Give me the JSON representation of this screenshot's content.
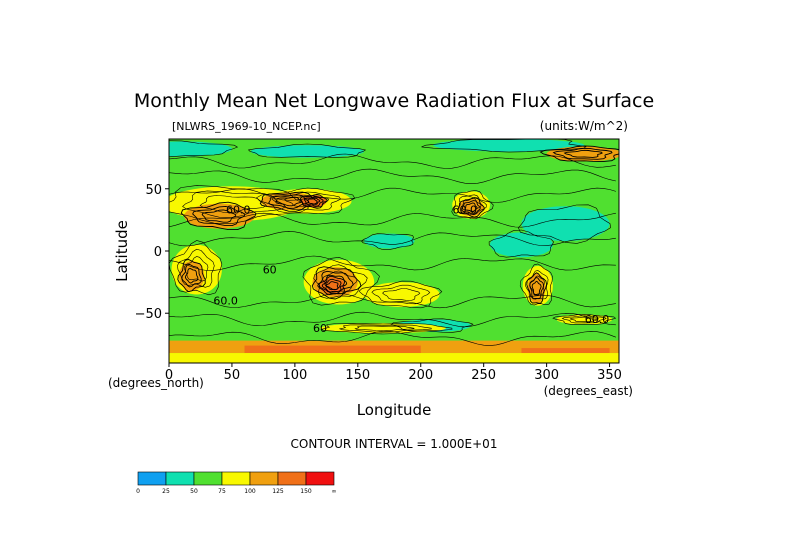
{
  "chart_data": {
    "type": "heatmap",
    "title": "Monthly Mean Net Longwave Radiation Flux at Surface",
    "file_label": "[NLWRS_1969-10_NCEP.nc]",
    "units_label": "(units:W/m^2)",
    "xlabel": "Longitude",
    "ylabel": "Latitude",
    "x_unit_label": "(degrees_east)",
    "y_unit_label": "(degrees_north)",
    "contour_interval_label": "CONTOUR INTERVAL = 1.000E+01",
    "xlim": [
      0,
      357.5
    ],
    "ylim": [
      -90,
      90
    ],
    "x_ticks": [
      0,
      50,
      100,
      150,
      200,
      250,
      300,
      350
    ],
    "y_ticks": [
      -50,
      0,
      50
    ],
    "contour_labels": [
      {
        "text": "60.0",
        "lon": 55,
        "lat": 30
      },
      {
        "text": "60",
        "lon": 80,
        "lat": -18
      },
      {
        "text": "60.0",
        "lon": 45,
        "lat": -43
      },
      {
        "text": "60.0",
        "lon": 235,
        "lat": 30
      },
      {
        "text": "60.0",
        "lon": 340,
        "lat": -58
      },
      {
        "text": "60",
        "lon": 120,
        "lat": -65
      }
    ],
    "colorbar": {
      "ticks": [
        "0",
        "25",
        "50",
        "75",
        "100",
        "125",
        "150",
        "∞"
      ],
      "colors": [
        "#10a0f0",
        "#10e0b0",
        "#50e030",
        "#f8f800",
        "#f0a010",
        "#f07018",
        "#f01010"
      ]
    },
    "features": [
      {
        "kind": "band",
        "level": 2,
        "lon": [
          0,
          357.5
        ],
        "lat": [
          -90,
          90
        ]
      },
      {
        "kind": "blob",
        "level": 1,
        "lon": 10,
        "lat": 82,
        "rx": 40,
        "ry": 6
      },
      {
        "kind": "blob",
        "level": 1,
        "lon": 110,
        "lat": 80,
        "rx": 45,
        "ry": 5
      },
      {
        "kind": "blob",
        "level": 1,
        "lon": 270,
        "lat": 85,
        "rx": 60,
        "ry": 5
      },
      {
        "kind": "blob",
        "level": 1,
        "lon": 315,
        "lat": 22,
        "rx": 35,
        "ry": 14
      },
      {
        "kind": "blob",
        "level": 1,
        "lon": 280,
        "lat": 5,
        "rx": 25,
        "ry": 10
      },
      {
        "kind": "blob",
        "level": 1,
        "lon": 175,
        "lat": 8,
        "rx": 20,
        "ry": 6
      },
      {
        "kind": "blob",
        "level": 1,
        "lon": 210,
        "lat": -60,
        "rx": 30,
        "ry": 5
      },
      {
        "kind": "blob",
        "level": 3,
        "lon": 50,
        "lat": 38,
        "rx": 55,
        "ry": 14
      },
      {
        "kind": "blob",
        "level": 3,
        "lon": 110,
        "lat": 40,
        "rx": 35,
        "ry": 10
      },
      {
        "kind": "blob",
        "level": 3,
        "lon": 240,
        "lat": 37,
        "rx": 15,
        "ry": 11
      },
      {
        "kind": "blob",
        "level": 3,
        "lon": 135,
        "lat": -25,
        "rx": 28,
        "ry": 18
      },
      {
        "kind": "blob",
        "level": 3,
        "lon": 22,
        "lat": -15,
        "rx": 20,
        "ry": 20
      },
      {
        "kind": "blob",
        "level": 3,
        "lon": 185,
        "lat": -35,
        "rx": 30,
        "ry": 10
      },
      {
        "kind": "blob",
        "level": 3,
        "lon": 293,
        "lat": -28,
        "rx": 12,
        "ry": 16
      },
      {
        "kind": "blob",
        "level": 3,
        "lon": 170,
        "lat": -62,
        "rx": 50,
        "ry": 4
      },
      {
        "kind": "blob",
        "level": 3,
        "lon": 330,
        "lat": -55,
        "rx": 22,
        "ry": 4
      },
      {
        "kind": "blob",
        "level": 4,
        "lon": 40,
        "lat": 28,
        "rx": 28,
        "ry": 10
      },
      {
        "kind": "blob",
        "level": 4,
        "lon": 95,
        "lat": 40,
        "rx": 22,
        "ry": 7
      },
      {
        "kind": "blob",
        "level": 4,
        "lon": 240,
        "lat": 35,
        "rx": 10,
        "ry": 7
      },
      {
        "kind": "blob",
        "level": 4,
        "lon": 132,
        "lat": -25,
        "rx": 18,
        "ry": 12
      },
      {
        "kind": "blob",
        "level": 4,
        "lon": 18,
        "lat": -20,
        "rx": 10,
        "ry": 12
      },
      {
        "kind": "blob",
        "level": 4,
        "lon": 292,
        "lat": -30,
        "rx": 7,
        "ry": 12
      },
      {
        "kind": "blob",
        "level": 5,
        "lon": 115,
        "lat": 40,
        "rx": 10,
        "ry": 5
      },
      {
        "kind": "blob",
        "level": 5,
        "lon": 130,
        "lat": -28,
        "rx": 10,
        "ry": 7
      },
      {
        "kind": "band",
        "level": 4,
        "lon": [
          0,
          357.5
        ],
        "lat": [
          -82,
          -72
        ]
      },
      {
        "kind": "band",
        "level": 5,
        "lon": [
          60,
          200
        ],
        "lat": [
          -82,
          -76
        ]
      },
      {
        "kind": "band",
        "level": 5,
        "lon": [
          280,
          350
        ],
        "lat": [
          -86,
          -78
        ]
      },
      {
        "kind": "band",
        "level": 3,
        "lon": [
          0,
          357.5
        ],
        "lat": [
          -90,
          -82
        ]
      },
      {
        "kind": "blob",
        "level": 4,
        "lon": 330,
        "lat": 78,
        "rx": 30,
        "ry": 6
      }
    ]
  }
}
